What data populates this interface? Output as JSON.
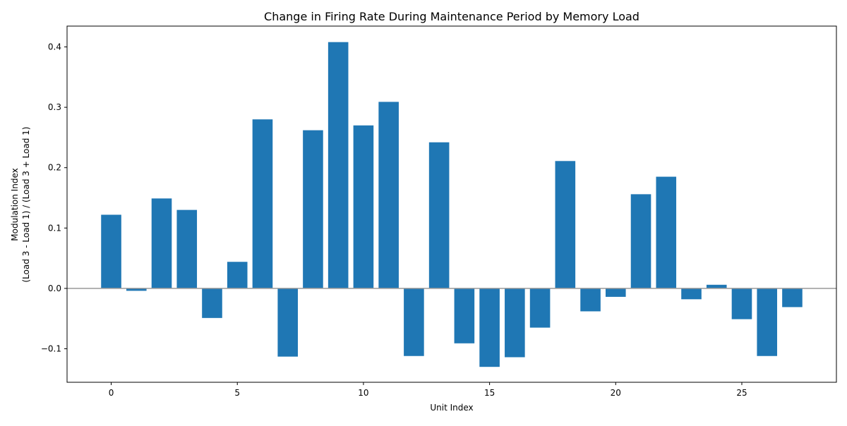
{
  "chart_data": {
    "type": "bar",
    "title": "Change in Firing Rate During Maintenance Period by Memory Load",
    "xlabel": "Unit Index",
    "ylabel_line1": "Modulation Index",
    "ylabel_line2": "(Load 3 - Load 1) / (Load 3 + Load 1)",
    "x": [
      0,
      1,
      2,
      3,
      4,
      5,
      6,
      7,
      8,
      9,
      10,
      11,
      12,
      13,
      14,
      15,
      16,
      17,
      18,
      19,
      20,
      21,
      22,
      23,
      24,
      25,
      26,
      27
    ],
    "values": [
      0.122,
      -0.004,
      0.149,
      0.13,
      -0.049,
      0.044,
      0.28,
      -0.113,
      0.262,
      0.408,
      0.27,
      0.309,
      -0.112,
      0.242,
      -0.091,
      -0.13,
      -0.114,
      -0.065,
      0.211,
      -0.038,
      -0.014,
      0.156,
      0.185,
      -0.018,
      0.006,
      -0.051,
      -0.112,
      -0.031
    ],
    "xlim": [
      -1.75,
      28.75
    ],
    "ylim": [
      -0.1555,
      0.4345
    ],
    "xticks": [
      0,
      5,
      10,
      15,
      20,
      25
    ],
    "xtick_labels": [
      "0",
      "5",
      "10",
      "15",
      "20",
      "25"
    ],
    "yticks": [
      -0.1,
      0.0,
      0.1,
      0.2,
      0.3,
      0.4
    ],
    "ytick_labels": [
      "−0.1",
      "0.0",
      "0.1",
      "0.2",
      "0.3",
      "0.4"
    ],
    "zero_line": true,
    "grid": false,
    "colors": {
      "bar": "#1f77b4",
      "zero_line": "#999999",
      "axes": "#000000"
    }
  }
}
